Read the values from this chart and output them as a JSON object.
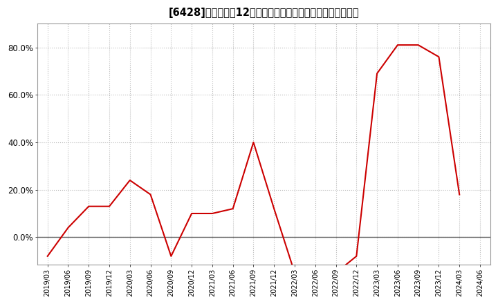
{
  "title": "[6428]　売上高の12か月移動合計の対前年同期増減率の推移",
  "line_color": "#cc0000",
  "background_color": "#ffffff",
  "grid_color": "#bbbbbb",
  "zero_line_color": "#666666",
  "dates": [
    "2019/03",
    "2019/06",
    "2019/09",
    "2019/12",
    "2020/03",
    "2020/06",
    "2020/09",
    "2020/12",
    "2021/03",
    "2021/06",
    "2021/09",
    "2021/12",
    "2022/03",
    "2022/06",
    "2022/09",
    "2022/12",
    "2023/03",
    "2023/06",
    "2023/09",
    "2023/12",
    "2024/03",
    "2024/06"
  ],
  "values": [
    -0.08,
    0.04,
    0.13,
    0.13,
    0.24,
    0.18,
    -0.08,
    0.1,
    0.1,
    0.12,
    0.4,
    0.12,
    -0.15,
    -0.17,
    -0.15,
    -0.08,
    0.69,
    0.81,
    0.81,
    0.76,
    0.18,
    null
  ],
  "yticks": [
    0.0,
    0.2,
    0.4,
    0.6,
    0.8
  ],
  "ytick_labels": [
    "0.0%",
    "20.0%",
    "40.0%",
    "60.0%",
    "80.0%"
  ],
  "ylim": [
    -0.115,
    0.9
  ],
  "xtick_rotation": 90,
  "title_fontsize": 10.5
}
